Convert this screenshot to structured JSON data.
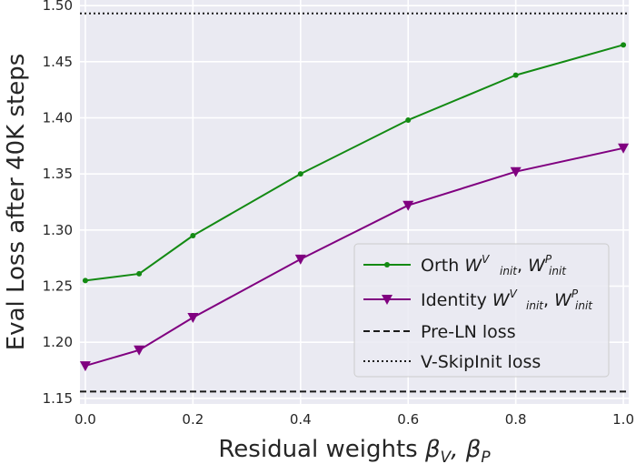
{
  "chart_data": {
    "type": "line",
    "xlabel_text": "Residual weights ",
    "xlabel_math": [
      "β",
      "V",
      ", β",
      "P"
    ],
    "ylabel": "Eval Loss after 40K steps",
    "xlim": [
      -0.01,
      1.01
    ],
    "ylim": [
      1.145,
      1.505
    ],
    "xticks": [
      0.0,
      0.2,
      0.4,
      0.6,
      0.8,
      1.0
    ],
    "xtick_labels": [
      "0.0",
      "0.2",
      "0.4",
      "0.6",
      "0.8",
      "1.0"
    ],
    "yticks": [
      1.15,
      1.2,
      1.25,
      1.3,
      1.35,
      1.4,
      1.45,
      1.5
    ],
    "ytick_labels": [
      "1.15",
      "1.20",
      "1.25",
      "1.30",
      "1.35",
      "1.40",
      "1.45",
      "1.50"
    ],
    "grid": true,
    "background": "#eaeaf2",
    "legend_position": "lower-right",
    "series": [
      {
        "name_prefix": "Orth ",
        "name_math": [
          "W",
          "V",
          "init",
          "W",
          "P",
          "init"
        ],
        "x": [
          0.0,
          0.1,
          0.2,
          0.4,
          0.6,
          0.8,
          1.0
        ],
        "values": [
          1.255,
          1.261,
          1.295,
          1.35,
          1.398,
          1.438,
          1.465
        ],
        "color": "#138a13",
        "marker": "circle"
      },
      {
        "name_prefix": "Identity ",
        "name_math": [
          "W",
          "V",
          "init",
          "W",
          "P",
          "init"
        ],
        "x": [
          0.0,
          0.1,
          0.2,
          0.4,
          0.6,
          0.8,
          1.0
        ],
        "values": [
          1.179,
          1.193,
          1.222,
          1.274,
          1.322,
          1.352,
          1.373
        ],
        "color": "#800080",
        "marker": "triangle-down"
      }
    ],
    "reference_lines": [
      {
        "name": "Pre-LN loss",
        "value": 1.156,
        "style": "dashed",
        "color": "#1a1a1a"
      },
      {
        "name": "V-SkipInit loss",
        "value": 1.493,
        "style": "dotted",
        "color": "#1a1a1a"
      }
    ]
  }
}
